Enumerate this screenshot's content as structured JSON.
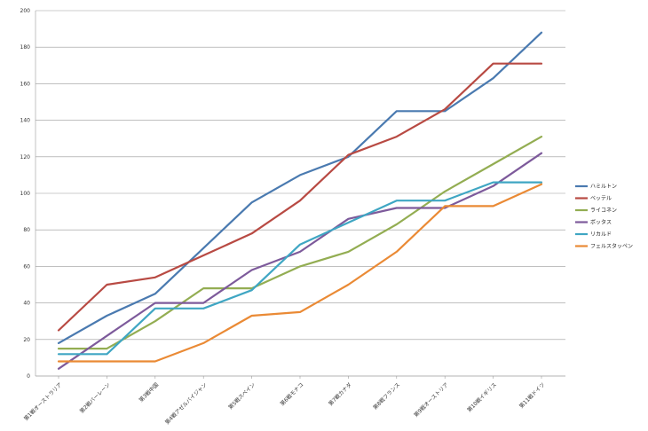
{
  "chart_data": {
    "type": "line",
    "categories": [
      "第1戦オーストラリア",
      "第2戦バーレーン",
      "第3戦中国",
      "第4戦アゼルバイジャン",
      "第5戦スペイン",
      "第6戦モナコ",
      "第7戦カナダ",
      "第8戦フランス",
      "第9戦オーストリア",
      "第10戦イギリス",
      "第11戦ドイツ"
    ],
    "ylim": [
      0,
      200
    ],
    "yticks": [
      0,
      20,
      40,
      60,
      80,
      100,
      120,
      140,
      160,
      180,
      200
    ],
    "grid": true,
    "legend_position": "right",
    "series": [
      {
        "name": "ハミルトン",
        "color": "#4a7ab0",
        "values": [
          18,
          33,
          45,
          70,
          95,
          110,
          120,
          145,
          145,
          163,
          188
        ]
      },
      {
        "name": "ベッテル",
        "color": "#b84a43",
        "values": [
          25,
          50,
          54,
          66,
          78,
          96,
          121,
          131,
          146,
          171,
          171
        ]
      },
      {
        "name": "ライコネン",
        "color": "#93ad52",
        "values": [
          15,
          15,
          30,
          48,
          48,
          60,
          68,
          83,
          101,
          116,
          131
        ]
      },
      {
        "name": "ボッタス",
        "color": "#7d5a9b",
        "values": [
          4,
          22,
          40,
          40,
          58,
          68,
          86,
          92,
          92,
          104,
          122
        ]
      },
      {
        "name": "リカルド",
        "color": "#3fa6c3",
        "values": [
          12,
          12,
          37,
          37,
          47,
          72,
          84,
          96,
          96,
          106,
          106
        ]
      },
      {
        "name": "フェルスタッペン",
        "color": "#ea8a35",
        "values": [
          8,
          8,
          8,
          18,
          33,
          35,
          50,
          68,
          93,
          93,
          105
        ]
      }
    ]
  }
}
